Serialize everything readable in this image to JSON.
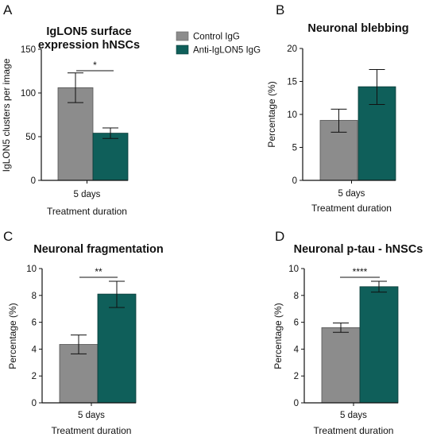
{
  "legend": {
    "items": [
      {
        "label": "Control IgG",
        "color": "#8c8c8c"
      },
      {
        "label": "Anti-IgLON5 IgG",
        "color": "#0f5f5a"
      }
    ]
  },
  "chart_data": [
    {
      "panel": "A",
      "type": "bar",
      "title": [
        "IgLON5 surface",
        "expression hNSCs"
      ],
      "categories": [
        "5 days"
      ],
      "series": [
        {
          "name": "Control IgG",
          "values": [
            106
          ],
          "error": [
            [
              89,
              123
            ]
          ],
          "color": "#8c8c8c"
        },
        {
          "name": "Anti-IgLON5 IgG",
          "values": [
            54
          ],
          "error": [
            [
              48,
              60
            ]
          ],
          "color": "#0f5f5a"
        }
      ],
      "xlabel": "Treatment duration",
      "ylabel": "IgLON5 clusters per image",
      "ylim": [
        0,
        150
      ],
      "yticks": [
        0,
        50,
        100,
        150
      ],
      "significance": "*"
    },
    {
      "panel": "B",
      "type": "bar",
      "title": [
        "Neuronal blebbing"
      ],
      "categories": [
        "5 days"
      ],
      "series": [
        {
          "name": "Control IgG",
          "values": [
            9.1
          ],
          "error": [
            [
              7.3,
              10.8
            ]
          ],
          "color": "#8c8c8c"
        },
        {
          "name": "Anti-IgLON5 IgG",
          "values": [
            14.2
          ],
          "error": [
            [
              11.5,
              16.8
            ]
          ],
          "color": "#0f5f5a"
        }
      ],
      "xlabel": "Treatment duration",
      "ylabel": "Percentage (%)",
      "ylim": [
        0,
        20
      ],
      "yticks": [
        0,
        5,
        10,
        15,
        20
      ],
      "significance": ""
    },
    {
      "panel": "C",
      "type": "bar",
      "title": [
        "Neuronal fragmentation"
      ],
      "categories": [
        "5 days"
      ],
      "series": [
        {
          "name": "Control IgG",
          "values": [
            4.35
          ],
          "error": [
            [
              3.65,
              5.05
            ]
          ],
          "color": "#8c8c8c"
        },
        {
          "name": "Anti-IgLON5 IgG",
          "values": [
            8.1
          ],
          "error": [
            [
              7.1,
              9.05
            ]
          ],
          "color": "#0f5f5a"
        }
      ],
      "xlabel": "Treatment duration",
      "ylabel": "Percentage (%)",
      "ylim": [
        0,
        10
      ],
      "yticks": [
        0,
        2,
        4,
        6,
        8,
        10
      ],
      "significance": "**"
    },
    {
      "panel": "D",
      "type": "bar",
      "title": [
        "Neuronal p-tau - hNSCs"
      ],
      "categories": [
        "5 days"
      ],
      "series": [
        {
          "name": "Control IgG",
          "values": [
            5.6
          ],
          "error": [
            [
              5.25,
              5.95
            ]
          ],
          "color": "#8c8c8c"
        },
        {
          "name": "Anti-IgLON5 IgG",
          "values": [
            8.65
          ],
          "error": [
            [
              8.25,
              9.05
            ]
          ],
          "color": "#0f5f5a"
        }
      ],
      "xlabel": "Treatment duration",
      "ylabel": "Percentage (%)",
      "ylim": [
        0,
        10
      ],
      "yticks": [
        0,
        2,
        4,
        6,
        8,
        10
      ],
      "significance": "****"
    }
  ]
}
